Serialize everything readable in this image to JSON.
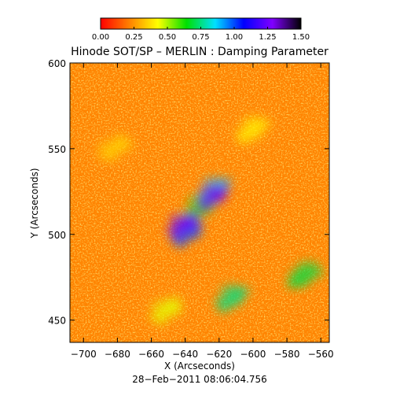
{
  "chart_data": {
    "type": "heatmap",
    "title": "Hinode SOT/SP – MERLIN : Damping Parameter",
    "xlabel": "X (Arcseconds)",
    "ylabel": "Y (Arcseconds)",
    "xlim": [
      -708,
      -555
    ],
    "ylim": [
      437,
      600
    ],
    "x_ticks": [
      {
        "value": -700,
        "label": "−700"
      },
      {
        "value": -680,
        "label": "−680"
      },
      {
        "value": -660,
        "label": "−660"
      },
      {
        "value": -640,
        "label": "−640"
      },
      {
        "value": -620,
        "label": "−620"
      },
      {
        "value": -600,
        "label": "−600"
      },
      {
        "value": -580,
        "label": "−580"
      },
      {
        "value": -560,
        "label": "−560"
      }
    ],
    "y_ticks": [
      {
        "value": 450,
        "label": "450"
      },
      {
        "value": 500,
        "label": "500"
      },
      {
        "value": 550,
        "label": "550"
      },
      {
        "value": 600,
        "label": "600"
      }
    ],
    "colorbar": {
      "range": [
        0.0,
        1.5
      ],
      "ticks": [
        {
          "value": 0.0,
          "label": "0.00"
        },
        {
          "value": 0.25,
          "label": "0.25"
        },
        {
          "value": 0.5,
          "label": "0.50"
        },
        {
          "value": 0.75,
          "label": "0.75"
        },
        {
          "value": 1.0,
          "label": "1.00"
        },
        {
          "value": 1.25,
          "label": "1.25"
        },
        {
          "value": 1.5,
          "label": "1.50"
        }
      ],
      "colors": [
        "#ff0000",
        "#ff8000",
        "#ffff00",
        "#00e000",
        "#00e0ff",
        "#0000ff",
        "#8000ff",
        "#000000"
      ]
    },
    "field": {
      "background_value": 0.22,
      "regions": [
        {
          "x": -630,
          "y": 515,
          "value": 0.65
        },
        {
          "x": -622,
          "y": 525,
          "value": 0.9
        },
        {
          "x": -638,
          "y": 500,
          "value": 1.0
        },
        {
          "x": -640,
          "y": 505,
          "value": 1.25
        },
        {
          "x": -623,
          "y": 521,
          "value": 1.3
        },
        {
          "x": -612,
          "y": 462,
          "value": 0.75
        },
        {
          "x": -650,
          "y": 455,
          "value": 0.45
        },
        {
          "x": -570,
          "y": 475,
          "value": 0.7
        },
        {
          "x": -680,
          "y": 550,
          "value": 0.35
        },
        {
          "x": -600,
          "y": 560,
          "value": 0.4
        }
      ]
    },
    "footer_text": "28−Feb−2011 08:06:04.756"
  }
}
